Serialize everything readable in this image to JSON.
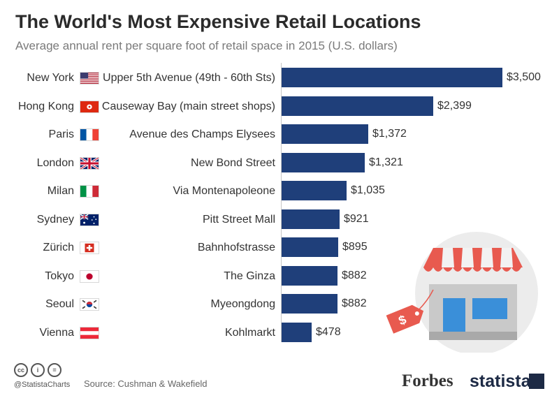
{
  "title": "The World's Most Expensive Retail Locations",
  "subtitle": "Average annual rent per square foot of retail space in 2015 (U.S. dollars)",
  "footer": {
    "handle": "@StatistaCharts",
    "source": "Source: Cushman & Wakefield",
    "forbes": "Forbes",
    "statista": "statista"
  },
  "colors": {
    "bar": "#1f3f7a"
  },
  "chart_data": {
    "type": "bar",
    "orientation": "horizontal",
    "title": "The World's Most Expensive Retail Locations",
    "subtitle": "Average annual rent per square foot of retail space in 2015 (U.S. dollars)",
    "xlim": [
      0,
      3500
    ],
    "grid": false,
    "items": [
      {
        "city": "New York",
        "street": "Upper 5th Avenue (49th - 60th Sts)",
        "value": 3500,
        "label": "$3,500",
        "flag": "usa"
      },
      {
        "city": "Hong Kong",
        "street": "Causeway Bay (main street shops)",
        "value": 2399,
        "label": "$2,399",
        "flag": "hongkong"
      },
      {
        "city": "Paris",
        "street": "Avenue des Champs Elysees",
        "value": 1372,
        "label": "$1,372",
        "flag": "france"
      },
      {
        "city": "London",
        "street": "New Bond Street",
        "value": 1321,
        "label": "$1,321",
        "flag": "uk"
      },
      {
        "city": "Milan",
        "street": "Via Montenapoleone",
        "value": 1035,
        "label": "$1,035",
        "flag": "italy"
      },
      {
        "city": "Sydney",
        "street": "Pitt Street Mall",
        "value": 921,
        "label": "$921",
        "flag": "australia"
      },
      {
        "city": "Zürich",
        "street": "Bahnhofstrasse",
        "value": 895,
        "label": "$895",
        "flag": "switzerland"
      },
      {
        "city": "Tokyo",
        "street": "The Ginza",
        "value": 882,
        "label": "$882",
        "flag": "japan"
      },
      {
        "city": "Seoul",
        "street": "Myeongdong",
        "value": 882,
        "label": "$882",
        "flag": "korea"
      },
      {
        "city": "Vienna",
        "street": "Kohlmarkt",
        "value": 478,
        "label": "$478",
        "flag": "austria"
      }
    ]
  }
}
